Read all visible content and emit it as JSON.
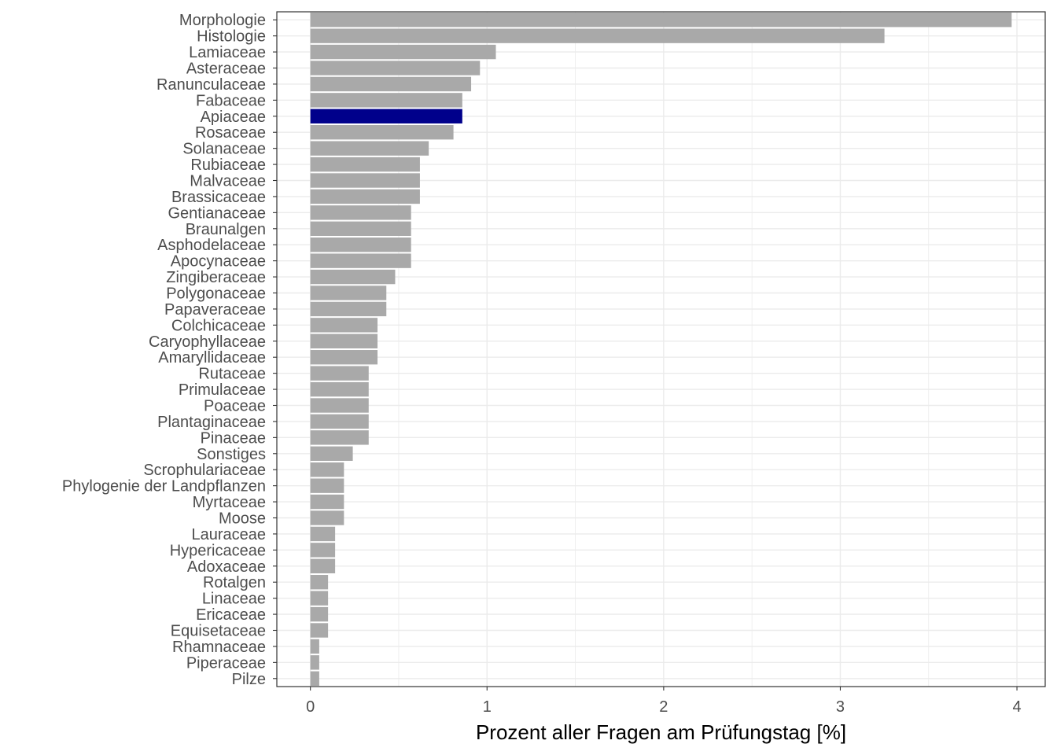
{
  "chart_data": {
    "type": "bar",
    "orientation": "horizontal",
    "title": "",
    "xlabel": "Prozent aller Fragen am Prüfungstag [%]",
    "ylabel": "",
    "xlim": [
      -0.19,
      4.16
    ],
    "xticks": [
      0,
      1,
      2,
      3,
      4
    ],
    "grid": true,
    "categories": [
      "Morphologie",
      "Histologie",
      "Lamiaceae",
      "Asteraceae",
      "Ranunculaceae",
      "Fabaceae",
      "Apiaceae",
      "Rosaceae",
      "Solanaceae",
      "Rubiaceae",
      "Malvaceae",
      "Brassicaceae",
      "Gentianaceae",
      "Braunalgen",
      "Asphodelaceae",
      "Apocynaceae",
      "Zingiberaceae",
      "Polygonaceae",
      "Papaveraceae",
      "Colchicaceae",
      "Caryophyllaceae",
      "Amaryllidaceae",
      "Rutaceae",
      "Primulaceae",
      "Poaceae",
      "Plantaginaceae",
      "Pinaceae",
      "Sonstiges",
      "Scrophulariaceae",
      "Phylogenie der Landpflanzen",
      "Myrtaceae",
      "Moose",
      "Lauraceae",
      "Hypericaceae",
      "Adoxaceae",
      "Rotalgen",
      "Linaceae",
      "Ericaceae",
      "Equisetaceae",
      "Rhamnaceae",
      "Piperaceae",
      "Pilze"
    ],
    "values": [
      3.97,
      3.25,
      1.05,
      0.96,
      0.91,
      0.86,
      0.86,
      0.81,
      0.67,
      0.62,
      0.62,
      0.62,
      0.57,
      0.57,
      0.57,
      0.57,
      0.48,
      0.43,
      0.43,
      0.38,
      0.38,
      0.38,
      0.33,
      0.33,
      0.33,
      0.33,
      0.33,
      0.24,
      0.19,
      0.19,
      0.19,
      0.19,
      0.14,
      0.14,
      0.14,
      0.1,
      0.1,
      0.1,
      0.1,
      0.05,
      0.05,
      0.05
    ],
    "highlight": "Apiaceae",
    "colors": {
      "bar": "#a9a9a9",
      "highlight": "#00008b",
      "grid": "#ebebeb",
      "panel_border": "#333333"
    }
  }
}
